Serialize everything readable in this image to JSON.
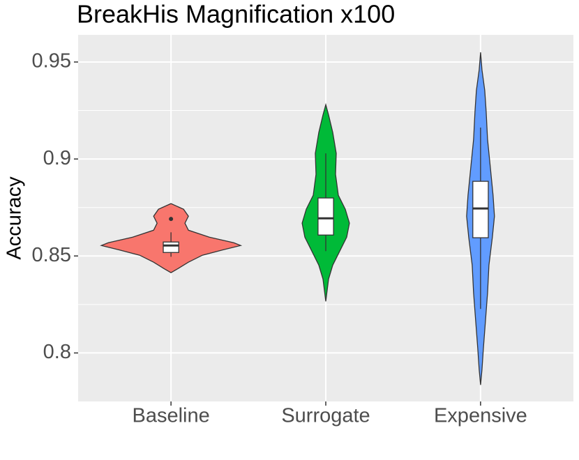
{
  "chart_data": {
    "type": "violin",
    "title": "BreakHis Magnification x100",
    "ylabel": "Accuracy",
    "categories": [
      "Baseline",
      "Surrogate",
      "Expensive"
    ],
    "ylim": [
      0.775,
      0.964
    ],
    "yticks": [
      0.8,
      0.85,
      0.9,
      0.95
    ],
    "minor_yticks": [
      0.825,
      0.875,
      0.925
    ],
    "grid": true,
    "series": [
      {
        "name": "Baseline",
        "color": "#F8766D",
        "violin": {
          "y": [
            0.877,
            0.8741,
            0.8705,
            0.8669,
            0.8633,
            0.8597,
            0.8568,
            0.8554,
            0.8532,
            0.8504,
            0.8468,
            0.8435,
            0.8414
          ],
          "width": [
            0,
            0.18,
            0.25,
            0.2,
            0.25,
            0.55,
            0.9,
            1.0,
            0.75,
            0.45,
            0.25,
            0.1,
            0
          ]
        },
        "box": {
          "min": 0.8496,
          "q1": 0.8518,
          "median": 0.8554,
          "q3": 0.8572,
          "max": 0.8622
        },
        "outliers": [
          0.8691
        ]
      },
      {
        "name": "Surrogate",
        "color": "#00BA38",
        "violin": {
          "y": [
            0.928,
            0.9227,
            0.9137,
            0.9029,
            0.8921,
            0.8813,
            0.8741,
            0.8669,
            0.8597,
            0.8525,
            0.8453,
            0.8381,
            0.8266
          ],
          "width": [
            0,
            0.04,
            0.1,
            0.15,
            0.14,
            0.18,
            0.28,
            0.34,
            0.3,
            0.2,
            0.1,
            0.04,
            0
          ]
        },
        "box": {
          "min": 0.8525,
          "q1": 0.8608,
          "median": 0.8694,
          "q3": 0.8799,
          "max": 0.9029
        },
        "outliers": []
      },
      {
        "name": "Expensive",
        "color": "#619CFF",
        "violin": {
          "y": [
            0.955,
            0.946,
            0.9353,
            0.9245,
            0.9101,
            0.8957,
            0.8813,
            0.8705,
            0.8597,
            0.8453,
            0.8309,
            0.8165,
            0.8022,
            0.7914,
            0.7835
          ],
          "width": [
            0,
            0.02,
            0.06,
            0.08,
            0.1,
            0.14,
            0.18,
            0.2,
            0.17,
            0.12,
            0.1,
            0.07,
            0.04,
            0.02,
            0
          ]
        },
        "box": {
          "min": 0.8227,
          "q1": 0.8594,
          "median": 0.8745,
          "q3": 0.8885,
          "max": 0.9162
        },
        "outliers": []
      }
    ]
  }
}
